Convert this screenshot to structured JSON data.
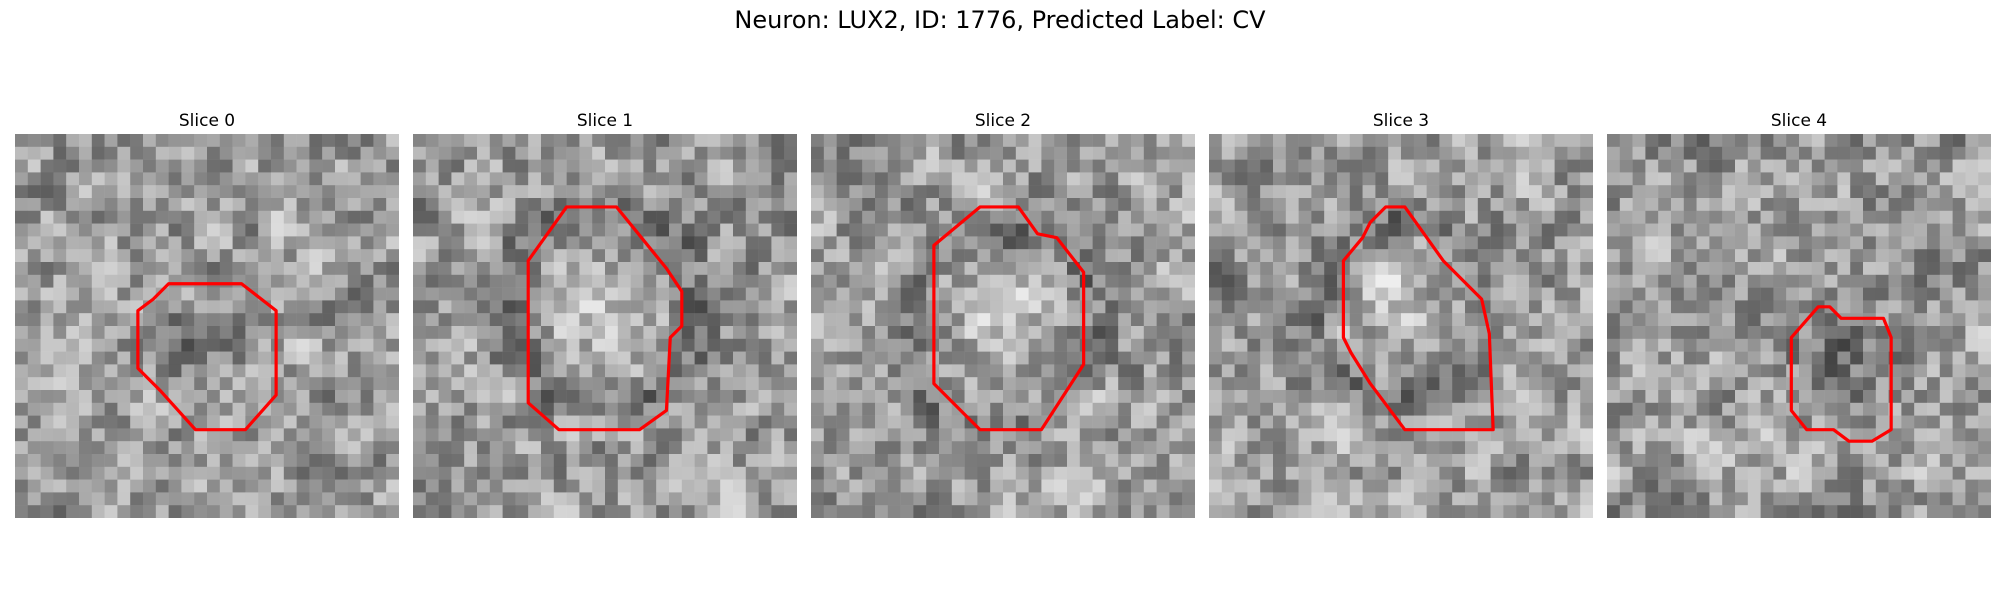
{
  "figure": {
    "title": "Neuron: LUX2, ID: 1776, Predicted Label: CV"
  },
  "colors": {
    "contour": "#ff0000",
    "background": "#ffffff"
  },
  "slices": [
    {
      "label": "Slice 0",
      "seed": 11,
      "blobCx": 0.5,
      "blobCy": 0.55,
      "blobR": 0.17,
      "blobDark": true,
      "contour": [
        [
          0.36,
          0.43
        ],
        [
          0.4,
          0.39
        ],
        [
          0.59,
          0.39
        ],
        [
          0.68,
          0.46
        ],
        [
          0.68,
          0.68
        ],
        [
          0.6,
          0.77
        ],
        [
          0.47,
          0.77
        ],
        [
          0.38,
          0.67
        ],
        [
          0.32,
          0.61
        ],
        [
          0.32,
          0.46
        ]
      ]
    },
    {
      "label": "Slice 1",
      "seed": 23,
      "blobCx": 0.5,
      "blobCy": 0.45,
      "blobR": 0.2,
      "blobDark": false,
      "contour": [
        [
          0.3,
          0.33
        ],
        [
          0.4,
          0.19
        ],
        [
          0.53,
          0.19
        ],
        [
          0.66,
          0.35
        ],
        [
          0.7,
          0.41
        ],
        [
          0.7,
          0.5
        ],
        [
          0.67,
          0.53
        ],
        [
          0.66,
          0.72
        ],
        [
          0.59,
          0.77
        ],
        [
          0.38,
          0.77
        ],
        [
          0.3,
          0.7
        ]
      ]
    },
    {
      "label": "Slice 2",
      "seed": 37,
      "blobCx": 0.48,
      "blobCy": 0.5,
      "blobR": 0.2,
      "blobDark": false,
      "contour": [
        [
          0.32,
          0.29
        ],
        [
          0.44,
          0.19
        ],
        [
          0.54,
          0.19
        ],
        [
          0.59,
          0.26
        ],
        [
          0.64,
          0.27
        ],
        [
          0.71,
          0.36
        ],
        [
          0.71,
          0.6
        ],
        [
          0.6,
          0.77
        ],
        [
          0.44,
          0.77
        ],
        [
          0.4,
          0.73
        ],
        [
          0.32,
          0.65
        ]
      ]
    },
    {
      "label": "Slice 3",
      "seed": 51,
      "blobCx": 0.5,
      "blobCy": 0.45,
      "blobR": 0.18,
      "blobDark": false,
      "contour": [
        [
          0.35,
          0.33
        ],
        [
          0.4,
          0.27
        ],
        [
          0.42,
          0.23
        ],
        [
          0.46,
          0.19
        ],
        [
          0.51,
          0.19
        ],
        [
          0.56,
          0.26
        ],
        [
          0.61,
          0.33
        ],
        [
          0.71,
          0.43
        ],
        [
          0.73,
          0.52
        ],
        [
          0.74,
          0.77
        ],
        [
          0.51,
          0.77
        ],
        [
          0.42,
          0.65
        ],
        [
          0.37,
          0.57
        ],
        [
          0.35,
          0.53
        ]
      ]
    },
    {
      "label": "Slice 4",
      "seed": 67,
      "blobCx": 0.6,
      "blobCy": 0.6,
      "blobR": 0.18,
      "blobDark": true,
      "contour": [
        [
          0.48,
          0.53
        ],
        [
          0.55,
          0.45
        ],
        [
          0.58,
          0.45
        ],
        [
          0.61,
          0.48
        ],
        [
          0.72,
          0.48
        ],
        [
          0.74,
          0.53
        ],
        [
          0.74,
          0.77
        ],
        [
          0.69,
          0.8
        ],
        [
          0.63,
          0.8
        ],
        [
          0.59,
          0.77
        ],
        [
          0.52,
          0.77
        ],
        [
          0.48,
          0.72
        ]
      ]
    }
  ]
}
